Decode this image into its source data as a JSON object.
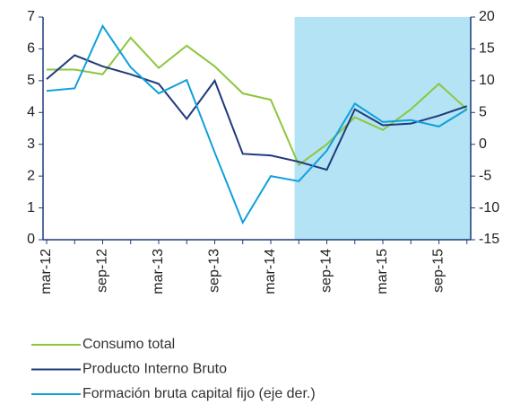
{
  "chart_data": {
    "type": "line",
    "categories": [
      "mar-12",
      null,
      "sep-12",
      null,
      "mar-13",
      null,
      "sep-13",
      null,
      "mar-14",
      null,
      "sep-14",
      null,
      "mar-15",
      null,
      "sep-15",
      null
    ],
    "series": [
      {
        "name": "Consumo total",
        "color": "#8dc63f",
        "axis": "y",
        "values": [
          5.35,
          5.35,
          5.2,
          6.35,
          5.4,
          6.1,
          5.45,
          4.6,
          4.4,
          2.35,
          3.0,
          3.85,
          3.45,
          4.1,
          4.9,
          4.1
        ]
      },
      {
        "name": "Producto Interno Bruto",
        "color": "#1f3a7a",
        "axis": "y",
        "values": [
          5.05,
          5.8,
          5.45,
          5.2,
          4.9,
          3.8,
          5.0,
          2.7,
          2.65,
          2.45,
          2.2,
          4.1,
          3.6,
          3.65,
          3.9,
          4.2
        ]
      },
      {
        "name": "Formación bruta capital fijo (eje der.)",
        "color": "#0fa0dc",
        "axis": "y2",
        "values": [
          8.4,
          8.8,
          18.6,
          12.1,
          8.0,
          10.1,
          -1.3,
          -12.3,
          -5.0,
          -5.8,
          -1.0,
          6.4,
          3.5,
          3.8,
          2.8,
          5.5
        ]
      }
    ],
    "ylim": [
      0,
      7
    ],
    "yticks": [
      0,
      1,
      2,
      3,
      4,
      5,
      6,
      7
    ],
    "y2lim": [
      -15,
      20
    ],
    "y2ticks": [
      -15,
      -10,
      -5,
      0,
      5,
      10,
      15,
      20
    ],
    "shaded_region": {
      "from": 8.85,
      "to": 15,
      "color": "#b3e3f5"
    },
    "axis_color": "#1f3a7a",
    "grid": false,
    "legend": "bottom"
  }
}
